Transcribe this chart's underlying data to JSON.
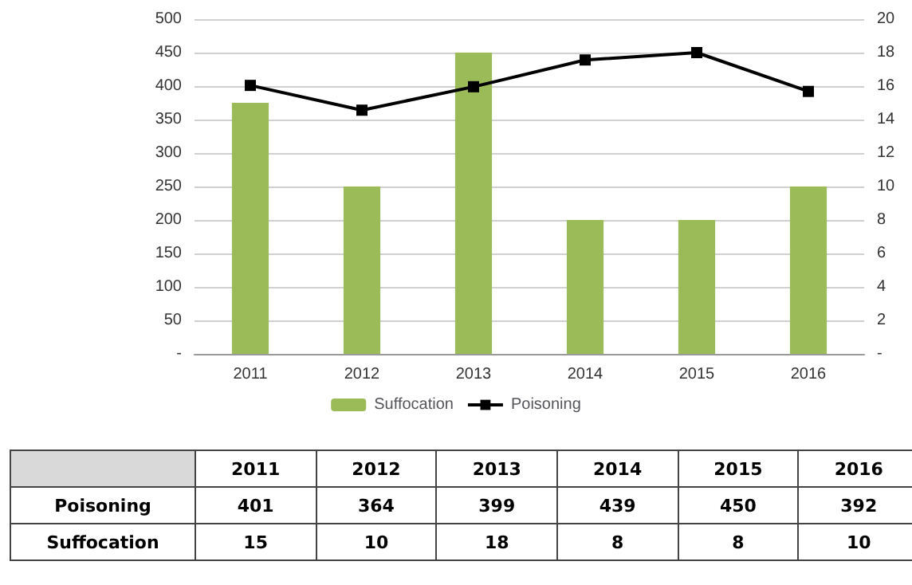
{
  "chart_data": {
    "type": "bar",
    "categories": [
      "2011",
      "2012",
      "2013",
      "2014",
      "2015",
      "2016"
    ],
    "series": [
      {
        "name": "Suffocation",
        "axis": "y2",
        "color": "#9bbb59",
        "values": [
          15,
          10,
          18,
          8,
          8,
          10
        ]
      },
      {
        "name": "Poisoning",
        "type": "line",
        "color": "#000000",
        "marker": "square",
        "values": [
          401,
          364,
          399,
          439,
          450,
          392
        ]
      }
    ],
    "ylim": [
      0,
      500
    ],
    "yticks": [
      {
        "value": 0,
        "label": "-"
      },
      50,
      100,
      150,
      200,
      250,
      300,
      350,
      400,
      450,
      500
    ],
    "y2lim": [
      0,
      20
    ],
    "y2ticks": [
      {
        "value": 0,
        "label": "-"
      },
      2,
      4,
      6,
      8,
      10,
      12,
      14,
      16,
      18,
      20
    ],
    "grid": "y",
    "legend": "bottom",
    "data_labels": true
  }
}
